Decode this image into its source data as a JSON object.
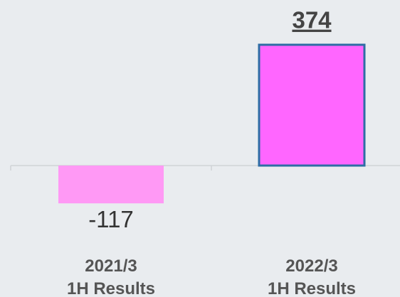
{
  "chart_data": {
    "type": "bar",
    "categories": [
      "2021/3\n1H Results",
      "2022/3\n1H Results"
    ],
    "values": [
      -117,
      374
    ],
    "colors": [
      "#ff99f5",
      "#ff66ff"
    ],
    "edgecolors": [
      null,
      "#2e6da4"
    ]
  }
}
